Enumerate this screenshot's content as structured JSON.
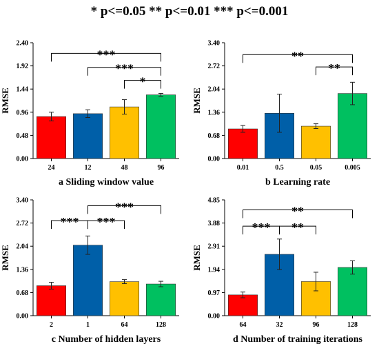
{
  "legend": "*  p<=0.05     **  p<=0.01     ***  p<=0.001",
  "colors": [
    "#ff0000",
    "#005fa8",
    "#ffc000",
    "#00c060"
  ],
  "chart_data": [
    {
      "type": "bar",
      "title": "a Sliding window value",
      "ylabel": "RMSE",
      "categories": [
        "24",
        "12",
        "48",
        "96"
      ],
      "values": [
        0.87,
        0.93,
        1.07,
        1.32
      ],
      "errors": [
        0.09,
        0.08,
        0.15,
        0.03
      ],
      "yticks": [
        "0.00",
        "0.48",
        "0.96",
        "1.44",
        "1.92",
        "2.40"
      ],
      "ylim": [
        0,
        2.4
      ],
      "brackets": [
        {
          "from": 0,
          "to": 3,
          "label": "***",
          "y": 2.18
        },
        {
          "from": 1,
          "to": 3,
          "label": "***",
          "y": 1.89
        },
        {
          "from": 2,
          "to": 3,
          "label": "*",
          "y": 1.62
        }
      ]
    },
    {
      "type": "bar",
      "title": "b Learning rate",
      "ylabel": "RMSE",
      "categories": [
        "0.01",
        "0.5",
        "0.05",
        "0.005"
      ],
      "values": [
        0.87,
        1.33,
        0.95,
        1.91
      ],
      "errors": [
        0.1,
        0.56,
        0.07,
        0.33
      ],
      "yticks": [
        "0.00",
        "0.68",
        "1.36",
        "2.04",
        "2.72",
        "3.40"
      ],
      "ylim": [
        0,
        3.4
      ],
      "brackets": [
        {
          "from": 0,
          "to": 3,
          "label": "**",
          "y": 3.05
        },
        {
          "from": 2,
          "to": 3,
          "label": "**",
          "y": 2.69
        }
      ]
    },
    {
      "type": "bar",
      "title": "c Number of hidden layers",
      "ylabel": "RMSE",
      "categories": [
        "2",
        "1",
        "64",
        "128"
      ],
      "values": [
        0.88,
        2.07,
        1.0,
        0.93
      ],
      "errors": [
        0.1,
        0.27,
        0.06,
        0.08
      ],
      "yticks": [
        "0.00",
        "0.68",
        "1.36",
        "2.04",
        "2.72",
        "3.40"
      ],
      "ylim": [
        0,
        3.4
      ],
      "brackets": [
        {
          "from": 0,
          "to": 1,
          "label": "***",
          "y": 2.79
        },
        {
          "from": 1,
          "to": 2,
          "label": "***",
          "y": 2.79
        },
        {
          "from": 1,
          "to": 3,
          "label": "***",
          "y": 3.23
        }
      ]
    },
    {
      "type": "bar",
      "title": "d Number of training iterations",
      "ylabel": "RMSE",
      "categories": [
        "64",
        "32",
        "96",
        "128"
      ],
      "values": [
        0.87,
        2.57,
        1.43,
        2.02
      ],
      "errors": [
        0.12,
        0.64,
        0.39,
        0.28
      ],
      "yticks": [
        "0.00",
        "0.97",
        "1.94",
        "2.91",
        "3.88",
        "4.85"
      ],
      "ylim": [
        0,
        4.85
      ],
      "brackets": [
        {
          "from": 0,
          "to": 1,
          "label": "***",
          "y": 3.75
        },
        {
          "from": 1,
          "to": 2,
          "label": "**",
          "y": 3.75
        },
        {
          "from": 0,
          "to": 3,
          "label": "**",
          "y": 4.43
        }
      ]
    }
  ]
}
